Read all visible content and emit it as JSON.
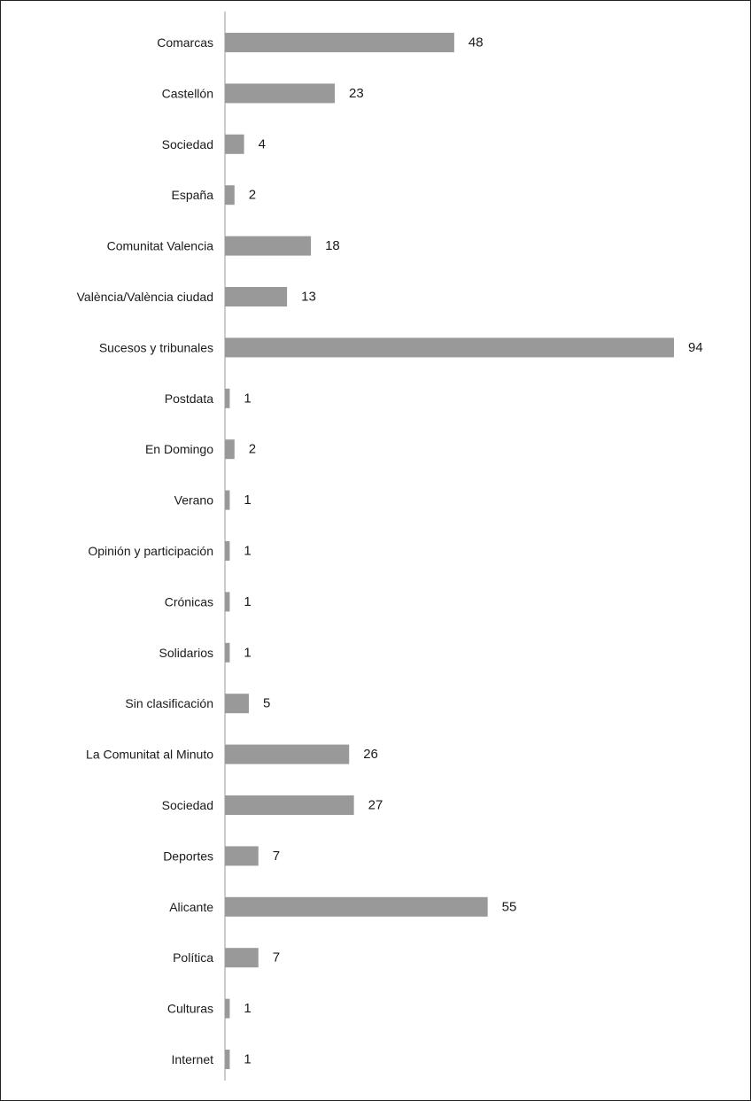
{
  "chart_data": {
    "type": "bar",
    "orientation": "horizontal",
    "title": "",
    "xlabel": "",
    "ylabel": "",
    "categories": [
      "Comarcas",
      "Castellón",
      "Sociedad",
      "España",
      "Comunitat Valencia",
      "València/València ciudad",
      "Sucesos y tribunales",
      "Postdata",
      "En Domingo",
      "Verano",
      "Opinión y participación",
      "Crónicas",
      "Solidarios",
      "Sin clasificación",
      "La Comunitat al Minuto",
      "Sociedad",
      "Deportes",
      "Alicante",
      "Política",
      "Culturas",
      "Internet"
    ],
    "values": [
      48,
      23,
      4,
      2,
      18,
      13,
      94,
      1,
      2,
      1,
      1,
      1,
      1,
      5,
      26,
      27,
      7,
      55,
      7,
      1,
      1
    ],
    "xlim": [
      0,
      94
    ],
    "grid": false,
    "legend": "none",
    "data_labels": true,
    "bar_color": "#999999",
    "axis_color": "#999999"
  }
}
